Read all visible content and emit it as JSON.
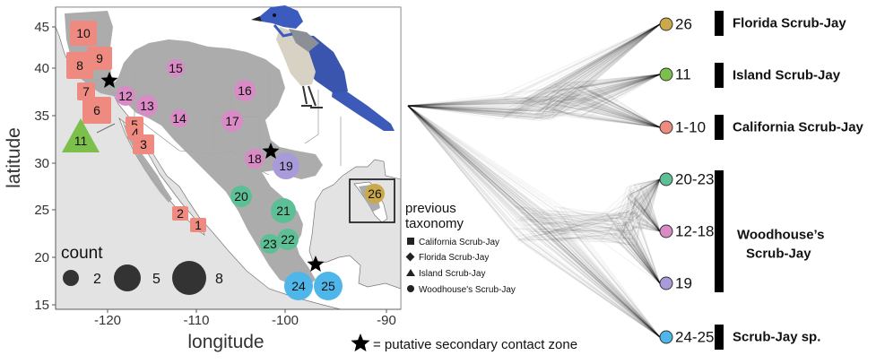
{
  "map": {
    "xlabel": "longitude",
    "ylabel": "latitude",
    "x_ticks": [
      "-120",
      "-110",
      "-100",
      "-90"
    ],
    "y_ticks": [
      "15",
      "20",
      "25",
      "30",
      "35",
      "40",
      "45"
    ],
    "sites": [
      {
        "id": "10",
        "shape": "square",
        "color": "#ee8a80"
      },
      {
        "id": "9",
        "shape": "square",
        "color": "#ee8a80"
      },
      {
        "id": "8",
        "shape": "square",
        "color": "#ee8a80"
      },
      {
        "id": "7",
        "shape": "square",
        "color": "#ee8a80"
      },
      {
        "id": "6",
        "shape": "square",
        "color": "#ee8a80"
      },
      {
        "id": "5",
        "shape": "square",
        "color": "#ee8a80"
      },
      {
        "id": "4",
        "shape": "square",
        "color": "#ee8a80"
      },
      {
        "id": "3",
        "shape": "square",
        "color": "#ee8a80"
      },
      {
        "id": "2",
        "shape": "square",
        "color": "#ee8a80"
      },
      {
        "id": "1",
        "shape": "square",
        "color": "#ee8a80"
      },
      {
        "id": "11",
        "shape": "triangle",
        "color": "#7cbf4a"
      },
      {
        "id": "15",
        "shape": "circle",
        "color": "#d98bc6"
      },
      {
        "id": "16",
        "shape": "circle",
        "color": "#d98bc6"
      },
      {
        "id": "12",
        "shape": "circle",
        "color": "#d98bc6"
      },
      {
        "id": "13",
        "shape": "circle",
        "color": "#d98bc6"
      },
      {
        "id": "14",
        "shape": "circle",
        "color": "#d98bc6"
      },
      {
        "id": "17",
        "shape": "circle",
        "color": "#d98bc6"
      },
      {
        "id": "18",
        "shape": "circle",
        "color": "#d98bc6"
      },
      {
        "id": "19",
        "shape": "circle",
        "color": "#a99bd9"
      },
      {
        "id": "20",
        "shape": "circle",
        "color": "#5dbf96"
      },
      {
        "id": "21",
        "shape": "circle",
        "color": "#5dbf96"
      },
      {
        "id": "22",
        "shape": "circle",
        "color": "#5dbf96"
      },
      {
        "id": "23",
        "shape": "circle",
        "color": "#5dbf96"
      },
      {
        "id": "24",
        "shape": "circle",
        "color": "#4fb6ea"
      },
      {
        "id": "25",
        "shape": "circle",
        "color": "#4fb6ea"
      },
      {
        "id": "26",
        "shape": "circle",
        "color": "#c9a94a"
      }
    ]
  },
  "legend": {
    "count_title": "count",
    "count_values": [
      "2",
      "5",
      "8"
    ],
    "taxonomy_title_1": "previous",
    "taxonomy_title_2": "taxonomy",
    "taxonomy_items": [
      {
        "shape": "square",
        "label": "California Scrub-Jay"
      },
      {
        "shape": "diamond",
        "label": "Florida Scrub-Jay"
      },
      {
        "shape": "triangle",
        "label": "Island Scrub-Jay"
      },
      {
        "shape": "circle",
        "label": "Woodhouse's Scrub-Jay"
      }
    ],
    "contact_zone": "= putative secondary contact zone"
  },
  "tree": {
    "tips": [
      {
        "label": "26",
        "color": "#c9a94a"
      },
      {
        "label": "11",
        "color": "#7cbf4a"
      },
      {
        "label": "1-10",
        "color": "#ee8a80"
      },
      {
        "label": "20-23",
        "color": "#5dbf96"
      },
      {
        "label": "12-18",
        "color": "#d98bc6"
      },
      {
        "label": "19",
        "color": "#a99bd9"
      },
      {
        "label": "24-25",
        "color": "#4fb6ea"
      }
    ],
    "clades": [
      {
        "label": "Florida Scrub-Jay"
      },
      {
        "label": "Island Scrub-Jay"
      },
      {
        "label": "California Scrub-Jay"
      },
      {
        "label_line1": "Woodhouse’s",
        "label_line2": "Scrub-Jay"
      },
      {
        "label": "Scrub-Jay sp."
      }
    ]
  },
  "colors": {
    "range": "#a8a8a8",
    "land": "#ffffff",
    "ocean": "#e3e3e3",
    "star": "#000000"
  }
}
